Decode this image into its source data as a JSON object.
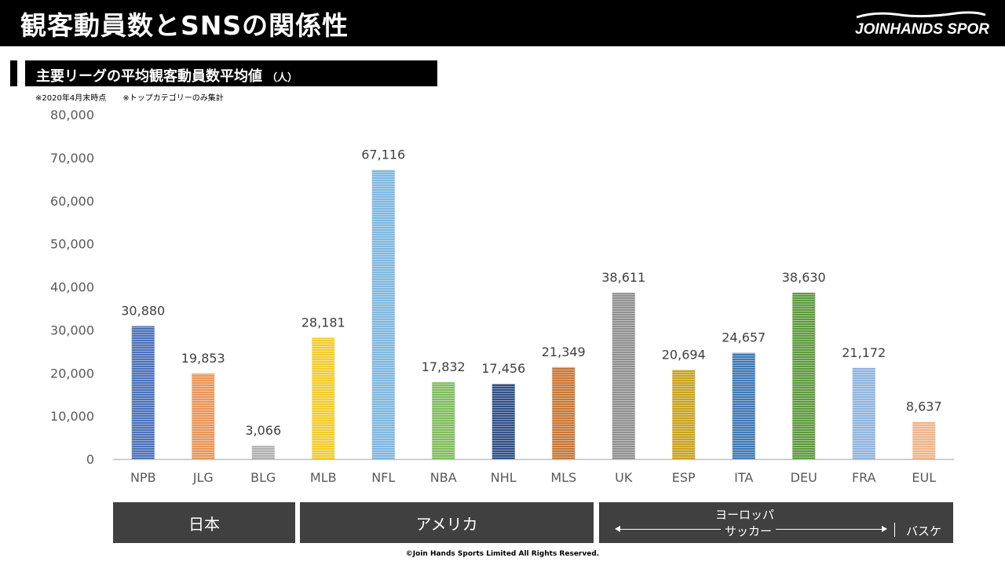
{
  "header": {
    "title": "観客動員数とSNSの関係性",
    "logo_text": "JOINHANDS SPORTS"
  },
  "section": {
    "title": "主要リーグの平均観客動員数平均値",
    "unit": "（人）"
  },
  "notes": [
    "※2020年4月末時点",
    "※トップカテゴリーのみ集計"
  ],
  "chart_data": {
    "type": "bar",
    "categories": [
      "NPB",
      "JLG",
      "BLG",
      "MLB",
      "NFL",
      "NBA",
      "NHL",
      "MLS",
      "UK",
      "ESP",
      "ITA",
      "DEU",
      "FRA",
      "EUL"
    ],
    "values": [
      30880,
      19853,
      3066,
      28181,
      67116,
      17832,
      17456,
      21349,
      38611,
      20694,
      24657,
      38630,
      21172,
      8637
    ],
    "value_labels": [
      "30,880",
      "19,853",
      "3,066",
      "28,181",
      "67,116",
      "17,832",
      "17,456",
      "21,349",
      "38,611",
      "20,694",
      "24,657",
      "38,630",
      "21,172",
      "8,637"
    ],
    "colors": [
      "#4a72b8",
      "#e8965a",
      "#b0b0b0",
      "#f2cc2e",
      "#7eb7df",
      "#7fbd5d",
      "#2f4f86",
      "#c77636",
      "#8f8f8f",
      "#c9a21f",
      "#3f78b5",
      "#5c9a3c",
      "#8fb4df",
      "#f0b58a"
    ],
    "ylim": [
      0,
      80000
    ],
    "yticks": [
      0,
      10000,
      20000,
      30000,
      40000,
      50000,
      60000,
      70000,
      80000
    ],
    "ytick_labels": [
      "0",
      "10,000",
      "20,000",
      "30,000",
      "40,000",
      "50,000",
      "60,000",
      "70,000",
      "80,000"
    ],
    "grid": false,
    "title": "",
    "xlabel": "",
    "ylabel": ""
  },
  "regions": {
    "japan": "日本",
    "america": "アメリカ",
    "europe": "ヨーロッパ",
    "soccer": "サッカー",
    "basketball": "バスケ"
  },
  "footer": "©Join Hands Sports Limited All Rights Reserved."
}
